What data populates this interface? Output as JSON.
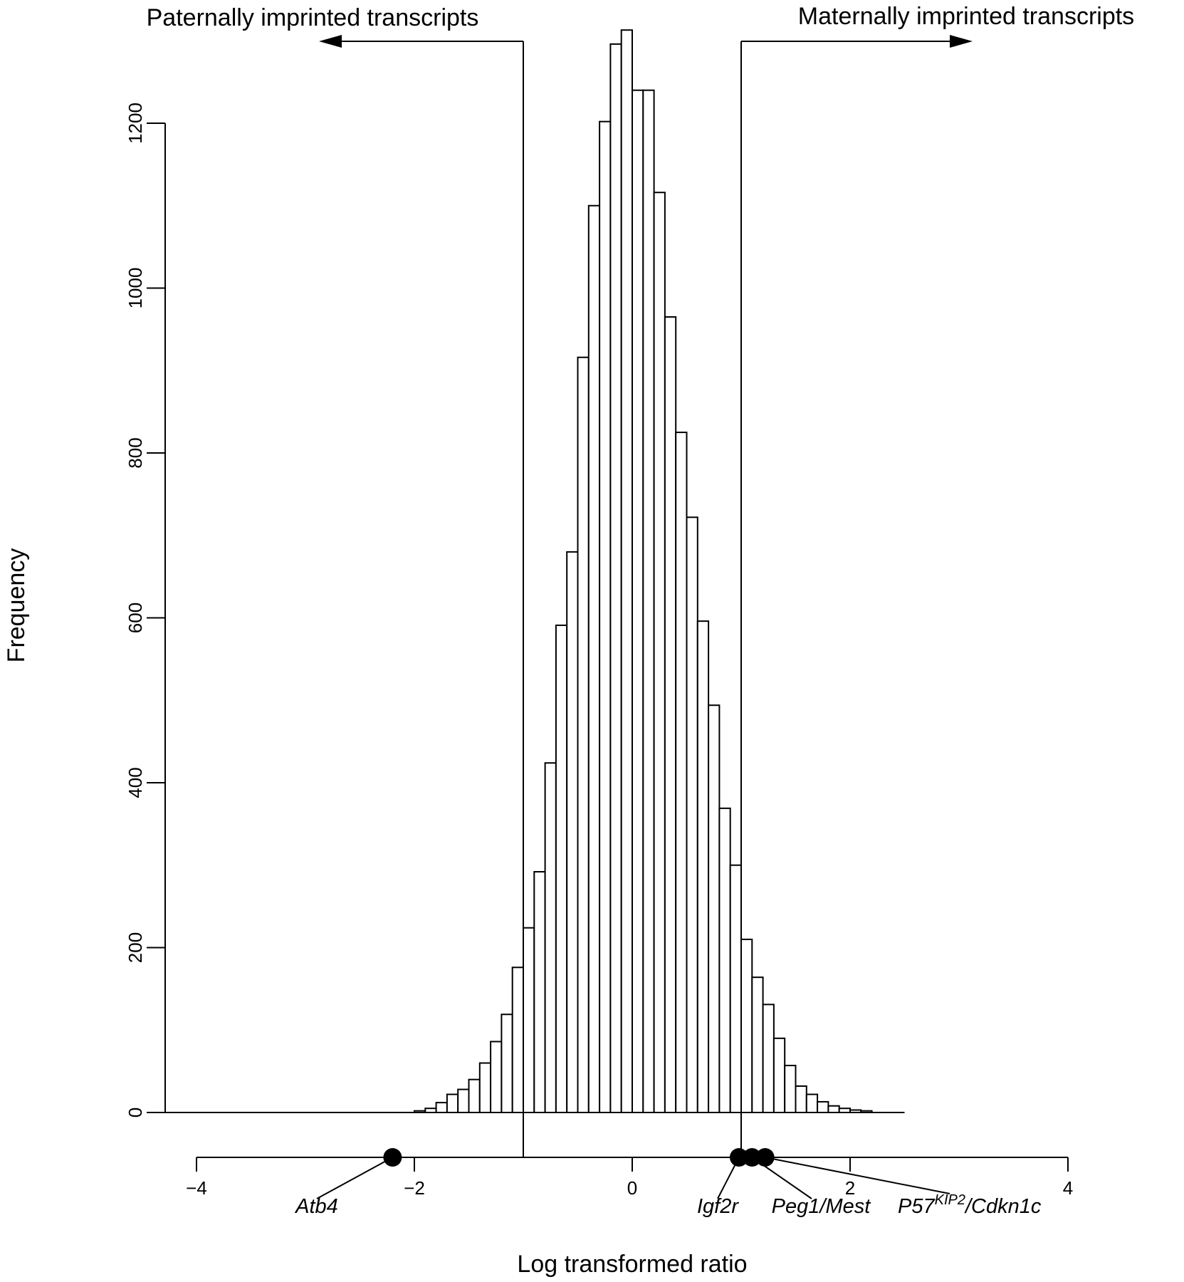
{
  "chart_data": {
    "type": "bar",
    "annotations": {
      "left_label": "Paternally imprinted transcripts",
      "right_label": "Maternally imprinted transcripts",
      "left_threshold": -1,
      "right_threshold": 1
    },
    "xlabel": "Log transformed ratio",
    "ylabel": "Frequency",
    "y_ticks": [
      "0",
      "200",
      "400",
      "600",
      "800",
      "1000",
      "1200"
    ],
    "y_tick_values": [
      0,
      200,
      400,
      600,
      800,
      1000,
      1200
    ],
    "x_ticks": [
      "−4",
      "−2",
      "0",
      "2",
      "4"
    ],
    "x_tick_values": [
      -4,
      -2,
      0,
      2,
      4
    ],
    "ylim": [
      0,
      1300
    ],
    "xlim": [
      -4,
      4
    ],
    "bin_width": 0.1,
    "bins": [
      {
        "x0": -2.0,
        "value": 2
      },
      {
        "x0": -1.9,
        "value": 5
      },
      {
        "x0": -1.8,
        "value": 12
      },
      {
        "x0": -1.7,
        "value": 22
      },
      {
        "x0": -1.6,
        "value": 28
      },
      {
        "x0": -1.5,
        "value": 40
      },
      {
        "x0": -1.4,
        "value": 60
      },
      {
        "x0": -1.3,
        "value": 86
      },
      {
        "x0": -1.2,
        "value": 119
      },
      {
        "x0": -1.1,
        "value": 176
      },
      {
        "x0": -1.0,
        "value": 224
      },
      {
        "x0": -0.9,
        "value": 292
      },
      {
        "x0": -0.8,
        "value": 424
      },
      {
        "x0": -0.7,
        "value": 591
      },
      {
        "x0": -0.6,
        "value": 680
      },
      {
        "x0": -0.5,
        "value": 916
      },
      {
        "x0": -0.4,
        "value": 1100
      },
      {
        "x0": -0.3,
        "value": 1202
      },
      {
        "x0": -0.2,
        "value": 1296
      },
      {
        "x0": -0.1,
        "value": 1313
      },
      {
        "x0": 0.0,
        "value": 1240
      },
      {
        "x0": 0.1,
        "value": 1240
      },
      {
        "x0": 0.2,
        "value": 1116
      },
      {
        "x0": 0.3,
        "value": 965
      },
      {
        "x0": 0.4,
        "value": 825
      },
      {
        "x0": 0.5,
        "value": 722
      },
      {
        "x0": 0.6,
        "value": 596
      },
      {
        "x0": 0.7,
        "value": 494
      },
      {
        "x0": 0.8,
        "value": 369
      },
      {
        "x0": 0.9,
        "value": 300
      },
      {
        "x0": 1.0,
        "value": 210
      },
      {
        "x0": 1.1,
        "value": 164
      },
      {
        "x0": 1.2,
        "value": 131
      },
      {
        "x0": 1.3,
        "value": 90
      },
      {
        "x0": 1.4,
        "value": 57
      },
      {
        "x0": 1.5,
        "value": 32
      },
      {
        "x0": 1.6,
        "value": 22
      },
      {
        "x0": 1.7,
        "value": 13
      },
      {
        "x0": 1.8,
        "value": 8
      },
      {
        "x0": 1.9,
        "value": 5
      },
      {
        "x0": 2.0,
        "value": 3
      },
      {
        "x0": 2.1,
        "value": 2
      }
    ],
    "highlighted_genes": [
      {
        "name": "Atb4",
        "x": -2.2
      },
      {
        "name": "Igf2r",
        "x": 0.98
      },
      {
        "name": "Peg1/Mest",
        "x": 1.1
      },
      {
        "name": "P57",
        "sup": "KIP2",
        "suffix": "/Cdkn1c",
        "x": 1.22
      }
    ]
  }
}
